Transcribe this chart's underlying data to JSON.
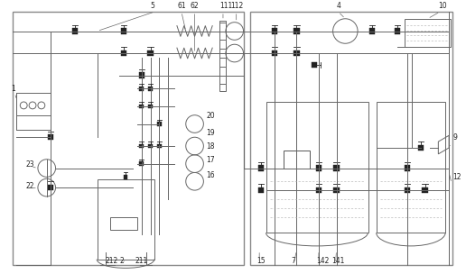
{
  "bg_color": "#ffffff",
  "line_color": "#666666",
  "fig_width": 5.16,
  "fig_height": 3.04,
  "dpi": 100
}
